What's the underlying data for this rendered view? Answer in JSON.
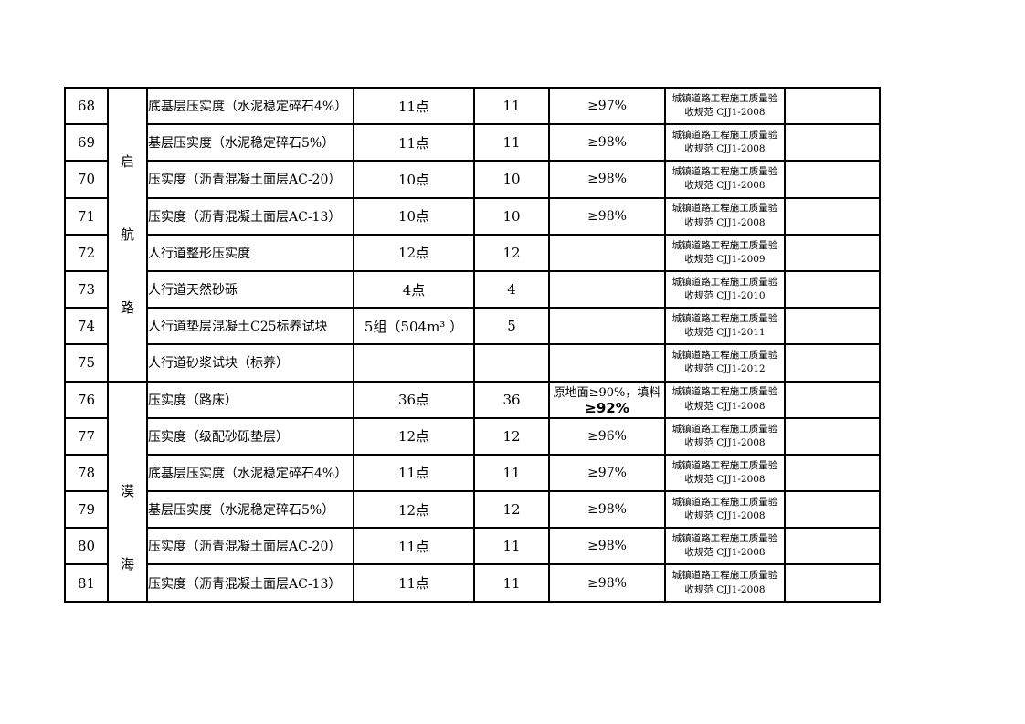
{
  "page": {
    "background_color": "#ffffff",
    "line_color": "#000000"
  },
  "table": {
    "groups": [
      {
        "name": "启航路",
        "chars": [
          "启",
          "航",
          "路"
        ],
        "row_span": 8
      },
      {
        "name": "漠海",
        "chars": [
          "漠",
          "海"
        ],
        "row_span": 6
      }
    ],
    "rows": [
      {
        "no": "68",
        "item": "底基层压实度（水泥稳定碎石4%）",
        "count": "11点",
        "qty": "11",
        "req": "≥97%",
        "req2": "",
        "std1": "城镇道路工程施工质量验",
        "std2": "收规范 CJJ1-2008"
      },
      {
        "no": "69",
        "item": "基层压实度（水泥稳定碎石5%）",
        "count": "11点",
        "qty": "11",
        "req": "≥98%",
        "req2": "",
        "std1": "城镇道路工程施工质量验",
        "std2": "收规范 CJJ1-2008"
      },
      {
        "no": "70",
        "item": "压实度（沥青混凝土面层AC-20）",
        "count": "10点",
        "qty": "10",
        "req": "≥98%",
        "req2": "",
        "std1": "城镇道路工程施工质量验",
        "std2": "收规范 CJJ1-2008"
      },
      {
        "no": "71",
        "item": "压实度（沥青混凝土面层AC-13）",
        "count": "10点",
        "qty": "10",
        "req": "≥98%",
        "req2": "",
        "std1": "城镇道路工程施工质量验",
        "std2": "收规范 CJJ1-2008"
      },
      {
        "no": "72",
        "item": "人行道整形压实度",
        "count": "12点",
        "qty": "12",
        "req": "",
        "req2": "",
        "std1": "城镇道路工程施工质量验",
        "std2": "收规范 CJJ1-2009"
      },
      {
        "no": "73",
        "item": "人行道天然砂砾",
        "count": "4点",
        "qty": "4",
        "req": "",
        "req2": "",
        "std1": "城镇道路工程施工质量验",
        "std2": "收规范 CJJ1-2010"
      },
      {
        "no": "74",
        "item": "人行道垫层混凝土C25标养试块",
        "count": "5组（504m³ ）",
        "qty": "5",
        "req": "",
        "req2": "",
        "std1": "城镇道路工程施工质量验",
        "std2": "收规范 CJJ1-2011"
      },
      {
        "no": "75",
        "item": "人行道砂浆试块（标养）",
        "count": "",
        "qty": "",
        "req": "",
        "req2": "",
        "std1": "城镇道路工程施工质量验",
        "std2": "收规范 CJJ1-2012"
      },
      {
        "no": "76",
        "item": "压实度（路床）",
        "count": "36点",
        "qty": "36",
        "req": "原地面≥90%，填料",
        "req2": "≥92%",
        "std1": "城镇道路工程施工质量验",
        "std2": "收规范 CJJ1-2008"
      },
      {
        "no": "77",
        "item": "压实度（级配砂砾垫层）",
        "count": "12点",
        "qty": "12",
        "req": "≥96%",
        "req2": "",
        "std1": "城镇道路工程施工质量验",
        "std2": "收规范 CJJ1-2008"
      },
      {
        "no": "78",
        "item": "底基层压实度（水泥稳定碎石4%）",
        "count": "11点",
        "qty": "11",
        "req": "≥97%",
        "req2": "",
        "std1": "城镇道路工程施工质量验",
        "std2": "收规范 CJJ1-2008"
      },
      {
        "no": "79",
        "item": "基层压实度（水泥稳定碎石5%）",
        "count": "12点",
        "qty": "12",
        "req": "≥98%",
        "req2": "",
        "std1": "城镇道路工程施工质量验",
        "std2": "收规范 CJJ1-2008"
      },
      {
        "no": "80",
        "item": "压实度（沥青混凝土面层AC-20）",
        "count": "11点",
        "qty": "11",
        "req": "≥98%",
        "req2": "",
        "std1": "城镇道路工程施工质量验",
        "std2": "收规范 CJJ1-2008"
      },
      {
        "no": "81",
        "item": "压实度（沥青混凝土面层AC-13）",
        "count": "11点",
        "qty": "11",
        "req": "≥98%",
        "req2": "",
        "std1": "城镇道路工程施工质量验",
        "std2": "收规范 CJJ1-2008"
      }
    ]
  }
}
